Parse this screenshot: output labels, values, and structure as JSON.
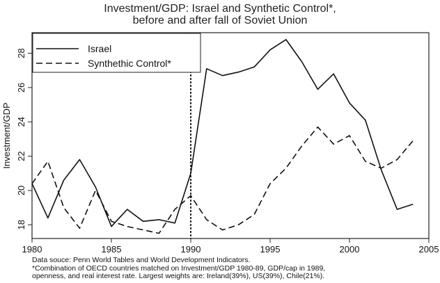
{
  "title_line1": "Investment/GDP: Israel and Synthetic Control*,",
  "title_line2": "before and after fall of Soviet Union",
  "footnotes": [
    "Data souce: Penn World Tables and World Development Indicators.",
    "*Combination of OECD countries matched on Investment/GDP 1980-89, GDP/cap in 1989,",
    "openness, and real interest rate. Largest weights are: Ireland(39%), US(39%), Chile(21%)."
  ],
  "chart_data": {
    "type": "line",
    "title": "Investment/GDP: Israel and Synthetic Control*, before and after fall of Soviet Union",
    "xlabel": "",
    "ylabel": "Investment/GDP",
    "xlim": [
      1980,
      2005
    ],
    "ylim": [
      17.2,
      29.2
    ],
    "xticks": [
      1980,
      1985,
      1990,
      1995,
      2000,
      2005
    ],
    "yticks": [
      18,
      20,
      22,
      24,
      26,
      28
    ],
    "grid": false,
    "legend_position": "top-left",
    "vline": 1990,
    "x": [
      1980,
      1981,
      1982,
      1983,
      1984,
      1985,
      1986,
      1987,
      1988,
      1989,
      1990,
      1991,
      1992,
      1993,
      1994,
      1995,
      1996,
      1997,
      1998,
      1999,
      2000,
      2001,
      2002,
      2003,
      2004
    ],
    "series": [
      {
        "name": "Israel",
        "style": "solid",
        "color": "#111111",
        "values": [
          20.4,
          18.4,
          20.6,
          21.8,
          20.2,
          17.9,
          18.9,
          18.2,
          18.3,
          18.1,
          21.0,
          27.1,
          26.7,
          26.9,
          27.2,
          28.2,
          28.8,
          27.5,
          25.9,
          26.8,
          25.1,
          24.1,
          21.2,
          18.9,
          19.2
        ]
      },
      {
        "name": "Synthethic Control*",
        "style": "dashed",
        "color": "#111111",
        "values": [
          20.4,
          21.7,
          19.0,
          17.8,
          20.0,
          18.2,
          17.9,
          17.7,
          17.5,
          18.9,
          19.7,
          18.3,
          17.7,
          18.0,
          18.6,
          20.4,
          21.3,
          22.6,
          23.7,
          22.7,
          23.2,
          21.7,
          21.3,
          21.8,
          22.9
        ]
      }
    ]
  }
}
